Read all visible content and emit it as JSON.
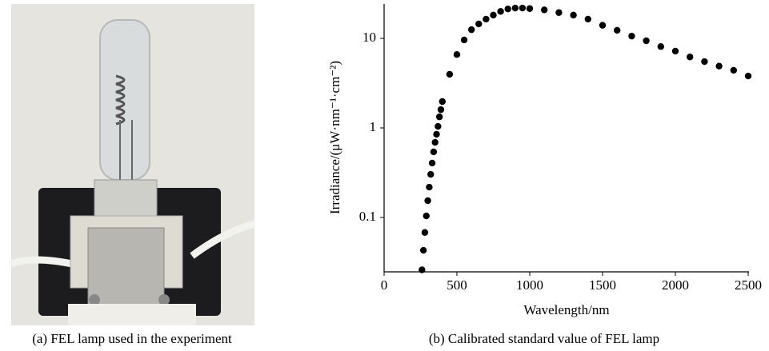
{
  "photo": {
    "caption": "(a) FEL lamp used in the experiment"
  },
  "chart_data": {
    "type": "scatter",
    "caption": "(b) Calibrated standard value of FEL lamp",
    "x_label": "Wavelength/nm",
    "y_label": "Irradiance/(μW·nm⁻¹·cm⁻²)",
    "xlim": [
      0,
      2500
    ],
    "xticks": [
      0,
      500,
      1000,
      1500,
      2000,
      2500
    ],
    "ylim": [
      0.0247,
      24.2
    ],
    "yticks": [
      0.1,
      1,
      10
    ],
    "log_y": true,
    "grid": false,
    "color": "#000000",
    "x": [
      260,
      270,
      280,
      290,
      300,
      310,
      320,
      330,
      340,
      350,
      360,
      370,
      380,
      390,
      400,
      450,
      500,
      550,
      600,
      650,
      700,
      750,
      800,
      850,
      900,
      950,
      1000,
      1100,
      1200,
      1300,
      1400,
      1500,
      1600,
      1700,
      1800,
      1900,
      2000,
      2100,
      2200,
      2300,
      2400,
      2500
    ],
    "values": [
      0.026,
      0.043,
      0.068,
      0.104,
      0.154,
      0.218,
      0.303,
      0.405,
      0.54,
      0.69,
      0.85,
      1.04,
      1.33,
      1.6,
      1.97,
      3.97,
      6.6,
      9.6,
      12.5,
      14.5,
      16.4,
      18.2,
      20.0,
      21.3,
      21.8,
      21.8,
      21.5,
      20.8,
      19.4,
      18.2,
      16.4,
      14.0,
      12.3,
      10.6,
      9.4,
      8.1,
      7.2,
      6.2,
      5.5,
      4.9,
      4.4,
      3.8
    ]
  }
}
